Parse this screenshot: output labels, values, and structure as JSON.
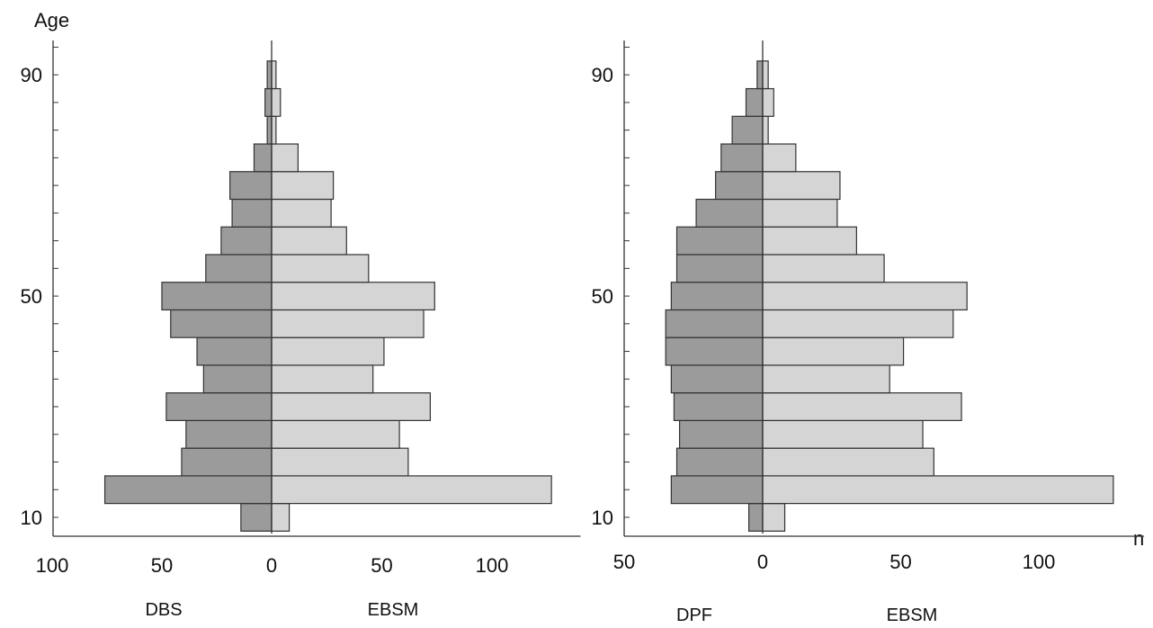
{
  "figure": {
    "y_axis_title": "Age",
    "n_label": "n"
  },
  "colors": {
    "left_bar": "#9b9b9b",
    "right_bar": "#d5d5d5",
    "stroke": "#333333",
    "axis": "#333333"
  },
  "chart_data": [
    {
      "type": "bar",
      "orientation": "horizontal-population-pyramid",
      "y_ticks": [
        "10",
        "50",
        "90"
      ],
      "ylim": [
        10,
        90
      ],
      "bin_width_years": 5,
      "age_bins": [
        10,
        15,
        20,
        25,
        30,
        35,
        40,
        45,
        50,
        55,
        60,
        65,
        70,
        75,
        80,
        85,
        90
      ],
      "left_xlim": [
        100,
        0
      ],
      "right_xlim": [
        0,
        130
      ],
      "left_x_ticks": [
        "100",
        "50",
        "0"
      ],
      "right_x_ticks": [
        "50",
        "100"
      ],
      "series": [
        {
          "name": "DBS",
          "side": "left",
          "values": [
            14,
            76,
            41,
            39,
            48,
            31,
            34,
            46,
            50,
            30,
            23,
            18,
            19,
            8,
            2,
            3,
            2
          ]
        },
        {
          "name": "EBSM",
          "side": "right",
          "values": [
            8,
            127,
            62,
            58,
            72,
            46,
            51,
            69,
            74,
            44,
            34,
            27,
            28,
            12,
            2,
            4,
            2
          ]
        }
      ]
    },
    {
      "type": "bar",
      "orientation": "horizontal-population-pyramid",
      "y_ticks": [
        "10",
        "50",
        "90"
      ],
      "ylim": [
        10,
        90
      ],
      "bin_width_years": 5,
      "age_bins": [
        10,
        15,
        20,
        25,
        30,
        35,
        40,
        45,
        50,
        55,
        60,
        65,
        70,
        75,
        80,
        85,
        90
      ],
      "left_xlim": [
        50,
        0
      ],
      "right_xlim": [
        0,
        130
      ],
      "left_x_ticks": [
        "50",
        "0"
      ],
      "right_x_ticks": [
        "50",
        "100"
      ],
      "series": [
        {
          "name": "DPF",
          "side": "left",
          "values": [
            5,
            33,
            31,
            30,
            32,
            33,
            35,
            35,
            33,
            31,
            31,
            24,
            17,
            15,
            11,
            6,
            2
          ]
        },
        {
          "name": "EBSM",
          "side": "right",
          "values": [
            8,
            127,
            62,
            58,
            72,
            46,
            51,
            69,
            74,
            44,
            34,
            27,
            28,
            12,
            2,
            4,
            2
          ]
        }
      ]
    }
  ]
}
